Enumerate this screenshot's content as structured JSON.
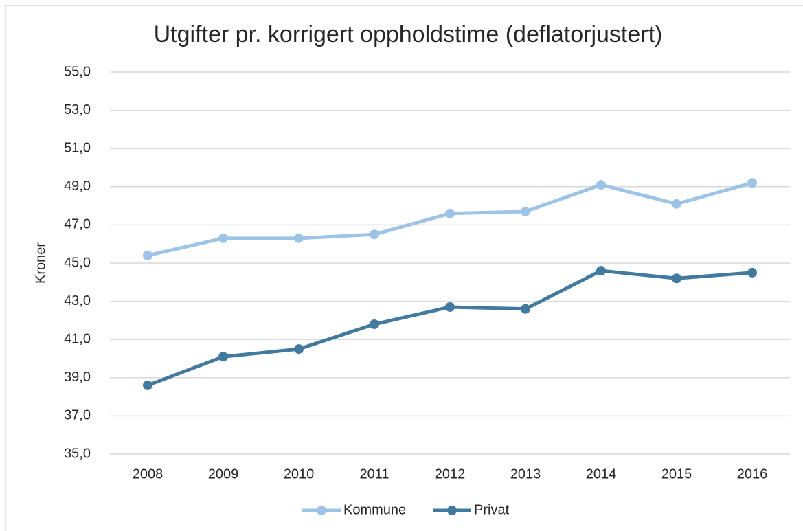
{
  "chart_data": {
    "type": "line",
    "title": "Utgifter pr. korrigert oppholdstime (deflatorjustert)",
    "y_label": "Kroner",
    "categories": [
      "2008",
      "2009",
      "2010",
      "2011",
      "2012",
      "2013",
      "2014",
      "2015",
      "2016"
    ],
    "series": [
      {
        "name": "Kommune",
        "color": "#9dc3e6",
        "values": [
          45.4,
          46.3,
          46.3,
          46.5,
          47.6,
          47.7,
          49.1,
          48.1,
          49.2
        ]
      },
      {
        "name": "Privat",
        "color": "#41799f",
        "values": [
          38.6,
          40.1,
          40.5,
          41.8,
          42.7,
          42.6,
          44.6,
          44.2,
          44.5
        ]
      }
    ],
    "ylim": [
      35,
      55
    ],
    "yticks": [
      {
        "value": 35,
        "label": "35,0"
      },
      {
        "value": 37,
        "label": "37,0"
      },
      {
        "value": 39,
        "label": "39,0"
      },
      {
        "value": 41,
        "label": "41,0"
      },
      {
        "value": 43,
        "label": "43,0"
      },
      {
        "value": 45,
        "label": "45,0"
      },
      {
        "value": 47,
        "label": "47,0"
      },
      {
        "value": 49,
        "label": "49,0"
      },
      {
        "value": 51,
        "label": "51,0"
      },
      {
        "value": 53,
        "label": "53,0"
      },
      {
        "value": 55,
        "label": "55,0"
      }
    ],
    "grid": true,
    "legend": "bottom"
  }
}
